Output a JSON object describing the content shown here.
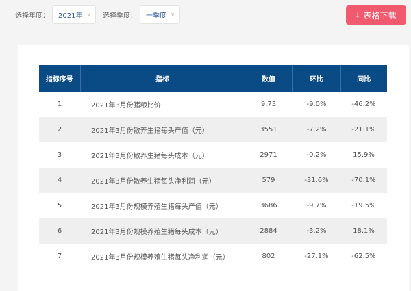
{
  "filters": {
    "year_label": "选择年度：",
    "year_value": "2021年",
    "quarter_label": "选择季度：",
    "quarter_value": "一季度"
  },
  "download": {
    "icon": "download-icon",
    "label": "表格下载"
  },
  "colors": {
    "header": "#0a4a85",
    "download": "#ef5a6e"
  },
  "table": {
    "headers": [
      "指标序号",
      "指标",
      "数值",
      "环比",
      "同比"
    ],
    "rows": [
      [
        "1",
        "2021年3月份猪粮比价",
        "9.73",
        "-9.0%",
        "-46.2%"
      ],
      [
        "2",
        "2021年3月份散养生猪每头产值（元）",
        "3551",
        "-7.2%",
        "-21.1%"
      ],
      [
        "3",
        "2021年3月份散养生猪每头成本（元）",
        "2971",
        "-0.2%",
        "15.9%"
      ],
      [
        "4",
        "2021年3月份散养生猪每头净利润（元）",
        "579",
        "-31.6%",
        "-70.1%"
      ],
      [
        "5",
        "2021年3月份规模养殖生猪每头产值（元）",
        "3686",
        "-9.7%",
        "-19.5%"
      ],
      [
        "6",
        "2021年3月份规模养殖生猪每头成本（元）",
        "2884",
        "-3.2%",
        "18.1%"
      ],
      [
        "7",
        "2021年3月份规模养殖生猪每头净利润（元）",
        "802",
        "-27.1%",
        "-62.5%"
      ]
    ]
  }
}
